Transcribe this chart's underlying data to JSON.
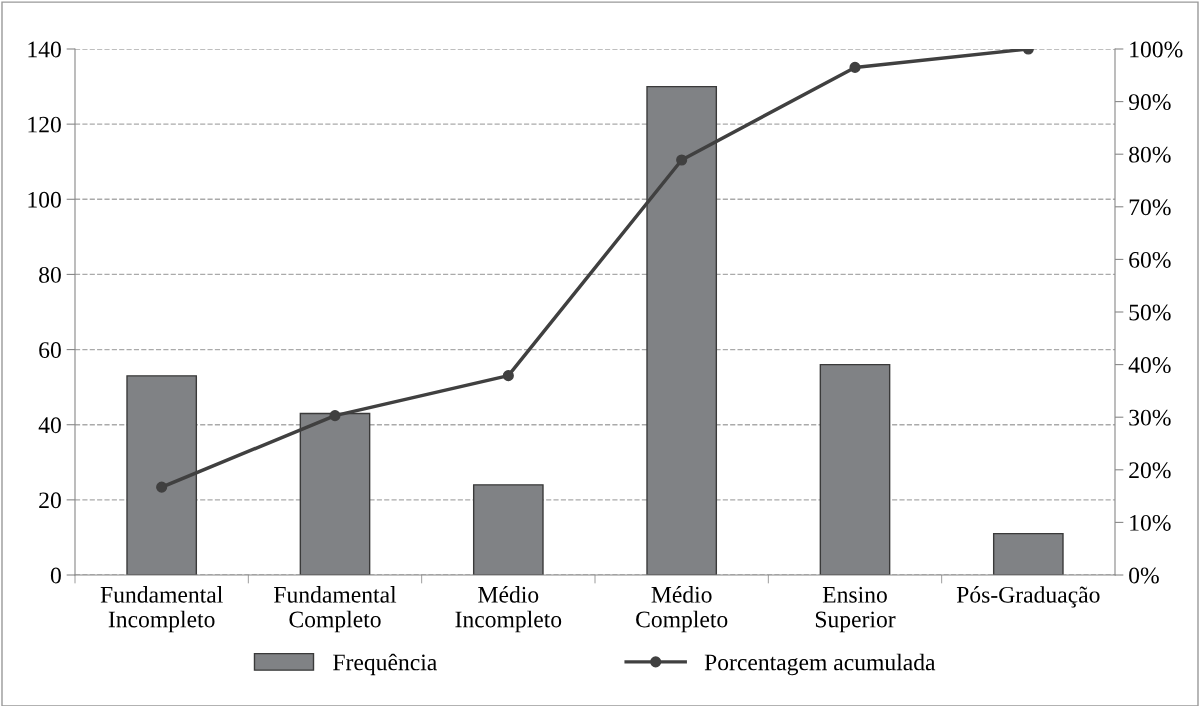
{
  "chart_data": {
    "type": "bar",
    "categories": [
      "Fundamental\nIncompleto",
      "Fundamental\nCompleto",
      "Médio\nIncompleto",
      "Médio\nCompleto",
      "Ensino\nSuperior",
      "Pós-Graduação"
    ],
    "series": [
      {
        "name": "Frequência",
        "color": "#808285",
        "values": [
          53,
          43,
          24,
          130,
          56,
          11
        ]
      },
      {
        "name": "Porcentagem acumulada",
        "type": "line",
        "axis": "y2",
        "color": "#404040",
        "marker": "circle",
        "values": [
          16.7,
          30.3,
          37.9,
          78.9,
          96.5,
          100
        ]
      }
    ],
    "ylim": [
      0,
      140
    ],
    "yticks": [
      0,
      20,
      40,
      60,
      80,
      100,
      120,
      140
    ],
    "y2lim": [
      0,
      100
    ],
    "y2ticks": [
      {
        "value": 0,
        "label": "0%"
      },
      {
        "value": 10,
        "label": "10%"
      },
      {
        "value": 20,
        "label": "20%"
      },
      {
        "value": 30,
        "label": "30%"
      },
      {
        "value": 40,
        "label": "40%"
      },
      {
        "value": 50,
        "label": "50%"
      },
      {
        "value": 60,
        "label": "60%"
      },
      {
        "value": 70,
        "label": "70%"
      },
      {
        "value": 80,
        "label": "80%"
      },
      {
        "value": 90,
        "label": "90%"
      },
      {
        "value": 100,
        "label": "100%"
      }
    ],
    "grid": "y",
    "legend": "bottom"
  }
}
